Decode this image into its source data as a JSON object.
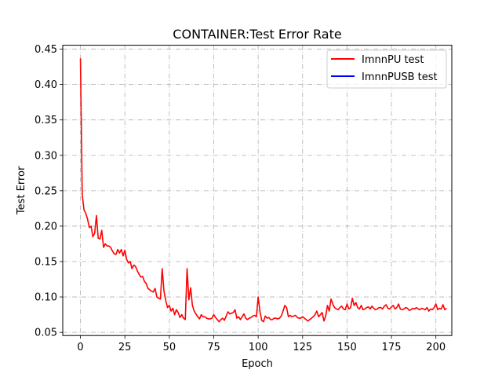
{
  "chart_data": {
    "type": "line",
    "title": "CONTAINER:Test Error Rate",
    "xlabel": "Epoch",
    "ylabel": "Test Error",
    "xlim": [
      -9.95,
      208.95
    ],
    "ylim": [
      0.0455,
      0.4555
    ],
    "xticks": [
      0,
      25,
      50,
      75,
      100,
      125,
      150,
      175,
      200
    ],
    "yticks": [
      0.05,
      0.1,
      0.15,
      0.2,
      0.25,
      0.3,
      0.35,
      0.4,
      0.45
    ],
    "ytick_labels": [
      "0.05",
      "0.10",
      "0.15",
      "0.20",
      "0.25",
      "0.30",
      "0.35",
      "0.40",
      "0.45"
    ],
    "grid": true,
    "grid_style": "dash-dot",
    "legend_position": "top-right",
    "series": [
      {
        "name": "ImnnPU test",
        "color": "#ff0000",
        "values": [
          0.437,
          0.245,
          0.223,
          0.218,
          0.21,
          0.198,
          0.2,
          0.185,
          0.19,
          0.215,
          0.183,
          0.182,
          0.194,
          0.17,
          0.175,
          0.172,
          0.172,
          0.17,
          0.165,
          0.161,
          0.16,
          0.167,
          0.162,
          0.167,
          0.158,
          0.166,
          0.153,
          0.148,
          0.15,
          0.14,
          0.145,
          0.143,
          0.137,
          0.132,
          0.128,
          0.129,
          0.122,
          0.119,
          0.112,
          0.11,
          0.108,
          0.107,
          0.112,
          0.1,
          0.098,
          0.097,
          0.14,
          0.108,
          0.095,
          0.085,
          0.088,
          0.08,
          0.084,
          0.075,
          0.082,
          0.078,
          0.071,
          0.075,
          0.07,
          0.068,
          0.14,
          0.096,
          0.113,
          0.088,
          0.08,
          0.076,
          0.072,
          0.069,
          0.075,
          0.072,
          0.072,
          0.07,
          0.069,
          0.069,
          0.07,
          0.075,
          0.071,
          0.068,
          0.065,
          0.068,
          0.07,
          0.067,
          0.073,
          0.079,
          0.076,
          0.077,
          0.078,
          0.082,
          0.07,
          0.072,
          0.068,
          0.072,
          0.076,
          0.07,
          0.068,
          0.07,
          0.071,
          0.073,
          0.074,
          0.072,
          0.1,
          0.08,
          0.067,
          0.065,
          0.073,
          0.07,
          0.071,
          0.068,
          0.068,
          0.07,
          0.07,
          0.069,
          0.07,
          0.073,
          0.08,
          0.088,
          0.085,
          0.072,
          0.074,
          0.072,
          0.073,
          0.074,
          0.071,
          0.07,
          0.07,
          0.072,
          0.07,
          0.068,
          0.066,
          0.068,
          0.07,
          0.072,
          0.075,
          0.08,
          0.072,
          0.075,
          0.078,
          0.066,
          0.073,
          0.088,
          0.08,
          0.097,
          0.09,
          0.085,
          0.083,
          0.082,
          0.085,
          0.087,
          0.083,
          0.082,
          0.09,
          0.083,
          0.085,
          0.098,
          0.088,
          0.092,
          0.085,
          0.083,
          0.088,
          0.082,
          0.083,
          0.085,
          0.086,
          0.083,
          0.087,
          0.084,
          0.082,
          0.083,
          0.085,
          0.085,
          0.083,
          0.087,
          0.089,
          0.084,
          0.083,
          0.086,
          0.088,
          0.083,
          0.085,
          0.09,
          0.083,
          0.082,
          0.083,
          0.085,
          0.084,
          0.081,
          0.082,
          0.084,
          0.083,
          0.085,
          0.083,
          0.082,
          0.084,
          0.083,
          0.082,
          0.085,
          0.08,
          0.083,
          0.082,
          0.085,
          0.09,
          0.082,
          0.084,
          0.083,
          0.089,
          0.082,
          0.084
        ]
      },
      {
        "name": "ImnnPUSB test",
        "color": "#0000ff",
        "values": []
      }
    ]
  }
}
